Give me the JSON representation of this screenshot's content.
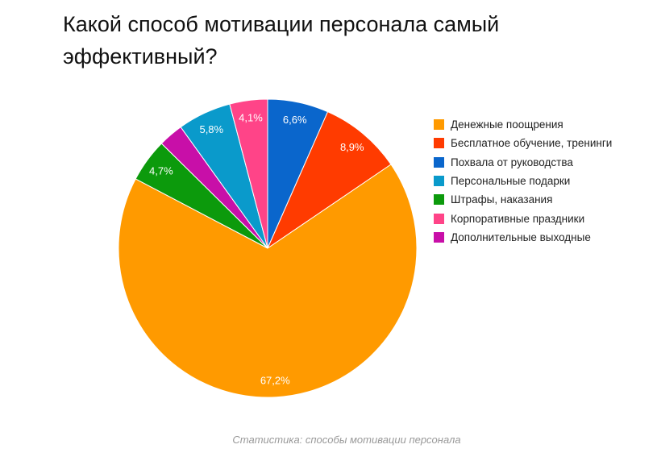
{
  "chart_data": {
    "type": "pie",
    "title": "Какой способ мотивации персонала самый эффективный?",
    "caption": "Статистика: способы мотивации персонала",
    "legend_position": "right",
    "slices": [
      {
        "name": "Похвала от руководства",
        "value": 6.6,
        "label": "6,6%",
        "color": "#0a66cc"
      },
      {
        "name": "Бесплатное обучение, тренинги",
        "value": 8.9,
        "label": "8,9%",
        "color": "#ff3b00"
      },
      {
        "name": "Денежные поощрения",
        "value": 67.2,
        "label": "67,2%",
        "color": "#ff9a00"
      },
      {
        "name": "Штрафы, наказания",
        "value": 4.7,
        "label": "4,7%",
        "color": "#0c9a0c"
      },
      {
        "name": "Дополнительные выходные",
        "value": 2.7,
        "label": "",
        "color": "#c80fa8"
      },
      {
        "name": "Персональные подарки",
        "value": 5.8,
        "label": "5,8%",
        "color": "#0a9acb"
      },
      {
        "name": "Корпоративные праздники",
        "value": 4.1,
        "label": "4,1%",
        "color": "#ff4488"
      }
    ],
    "legend_order": [
      "Денежные поощрения",
      "Бесплатное обучение, тренинги",
      "Похвала от руководства",
      "Персональные подарки",
      "Штрафы, наказания",
      "Корпоративные праздники",
      "Дополнительные выходные"
    ]
  }
}
